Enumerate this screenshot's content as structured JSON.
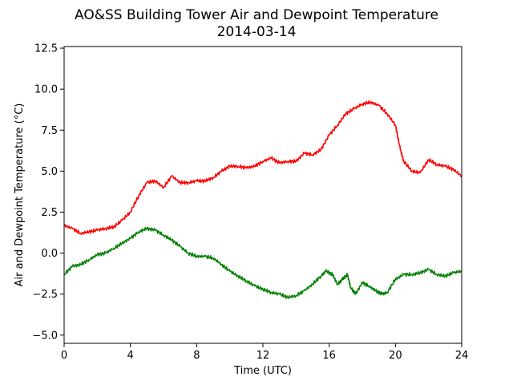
{
  "chart_data": {
    "type": "line",
    "title": "AO&SS Building Tower Air and Dewpoint Temperature",
    "subtitle": "2014-03-14",
    "xlabel": "Time (UTC)",
    "ylabel": "Air and Dewpoint Temperature (°C)",
    "xlim": [
      0,
      24
    ],
    "ylim": [
      -5.5,
      12.6
    ],
    "xticks": [
      0,
      4,
      8,
      12,
      16,
      20,
      24
    ],
    "xtick_labels": [
      "0",
      "4",
      "8",
      "12",
      "16",
      "20",
      "24"
    ],
    "yticks": [
      -5.0,
      -2.5,
      0.0,
      2.5,
      5.0,
      7.5,
      10.0,
      12.5
    ],
    "ytick_labels": [
      "−5.0",
      "−2.5",
      "0.0",
      "2.5",
      "5.0",
      "7.5",
      "10.0",
      "12.5"
    ],
    "grid": false,
    "series": [
      {
        "color": "#ff0000",
        "x": [
          0,
          0.5,
          1,
          1.5,
          2,
          2.5,
          3,
          3.5,
          4,
          4.5,
          5,
          5.5,
          6,
          6.5,
          7,
          7.5,
          8,
          8.5,
          9,
          9.5,
          10,
          10.5,
          11,
          11.5,
          12,
          12.5,
          13,
          13.5,
          14,
          14.5,
          15,
          15.5,
          16,
          16.5,
          17,
          17.5,
          18,
          18.5,
          19,
          19.5,
          20,
          20.3,
          20.5,
          21,
          21.5,
          22,
          22.5,
          23,
          23.5,
          24
        ],
        "y": [
          1.7,
          1.5,
          1.2,
          1.3,
          1.4,
          1.5,
          1.6,
          2.0,
          2.5,
          3.5,
          4.3,
          4.4,
          4.0,
          4.7,
          4.3,
          4.3,
          4.4,
          4.4,
          4.6,
          5.0,
          5.3,
          5.3,
          5.2,
          5.3,
          5.6,
          5.8,
          5.5,
          5.6,
          5.6,
          6.1,
          6.0,
          6.3,
          7.2,
          7.8,
          8.5,
          8.8,
          9.1,
          9.2,
          9.0,
          8.5,
          7.8,
          6.3,
          5.6,
          5.0,
          4.9,
          5.7,
          5.4,
          5.3,
          5.1,
          4.7
        ]
      },
      {
        "color": "#008000",
        "x": [
          0,
          0.5,
          1,
          1.5,
          2,
          2.5,
          3,
          3.5,
          4,
          4.5,
          5,
          5.5,
          6,
          6.5,
          7,
          7.5,
          8,
          8.5,
          9,
          9.5,
          10,
          10.5,
          11,
          11.5,
          12,
          12.5,
          13,
          13.5,
          14,
          14.5,
          15,
          15.5,
          15.8,
          16.2,
          16.5,
          16.8,
          17.1,
          17.3,
          17.6,
          18,
          18.4,
          18.8,
          19.2,
          19.5,
          20,
          20.5,
          21,
          21.5,
          22,
          22.5,
          23,
          23.5,
          24
        ],
        "y": [
          -1.3,
          -0.8,
          -0.7,
          -0.4,
          -0.1,
          0.0,
          0.3,
          0.6,
          0.9,
          1.3,
          1.5,
          1.4,
          1.1,
          0.8,
          0.4,
          0.0,
          -0.2,
          -0.2,
          -0.3,
          -0.7,
          -1.1,
          -1.4,
          -1.7,
          -2.0,
          -2.2,
          -2.4,
          -2.5,
          -2.7,
          -2.6,
          -2.3,
          -1.9,
          -1.4,
          -1.1,
          -1.3,
          -1.9,
          -1.6,
          -1.3,
          -2.1,
          -2.5,
          -1.8,
          -2.0,
          -2.3,
          -2.5,
          -2.4,
          -1.6,
          -1.3,
          -1.3,
          -1.2,
          -1.0,
          -1.3,
          -1.4,
          -1.2,
          -1.1
        ]
      }
    ]
  }
}
